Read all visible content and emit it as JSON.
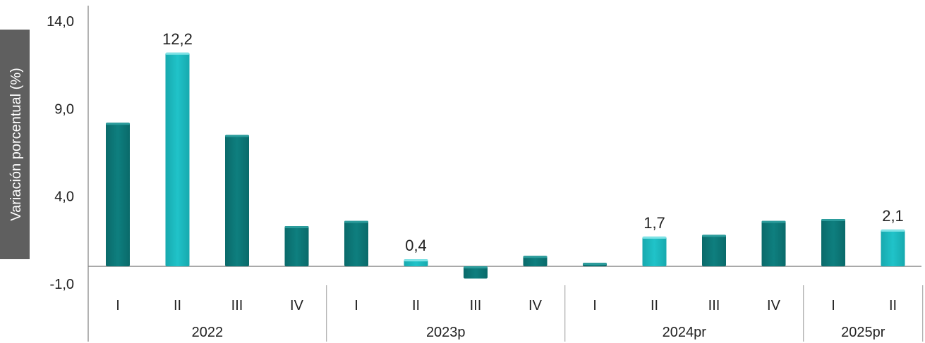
{
  "chart_data": {
    "type": "bar",
    "ylabel": "Variación porcentual (%)",
    "ylim": [
      -1.0,
      14.0
    ],
    "yticks": [
      "14,0",
      "9,0",
      "4,0",
      "-1,0"
    ],
    "ytick_values": [
      14.0,
      9.0,
      4.0,
      -1.0
    ],
    "groups": [
      {
        "year": "2022",
        "categories": [
          "I",
          "II",
          "III",
          "IV"
        ]
      },
      {
        "year": "2023p",
        "categories": [
          "I",
          "II",
          "III",
          "IV"
        ]
      },
      {
        "year": "2024pr",
        "categories": [
          "I",
          "II",
          "III",
          "IV"
        ]
      },
      {
        "year": "2025pr",
        "categories": [
          "I",
          "II"
        ]
      }
    ],
    "values": [
      8.2,
      12.2,
      7.5,
      2.3,
      2.6,
      0.4,
      -0.7,
      0.6,
      0.2,
      1.7,
      1.8,
      2.6,
      2.7,
      2.1
    ],
    "highlight": [
      false,
      true,
      false,
      false,
      false,
      true,
      false,
      false,
      false,
      true,
      false,
      false,
      false,
      true
    ],
    "data_labels": [
      "",
      "12,2",
      "",
      "",
      "",
      "0,4",
      "",
      "",
      "",
      "1,7",
      "",
      "",
      "",
      "2,1"
    ],
    "grid": false,
    "colors": {
      "dark": "#0e7f7f",
      "light": "#20c3c9",
      "ylabel_bg": "#5f5f5f"
    }
  }
}
